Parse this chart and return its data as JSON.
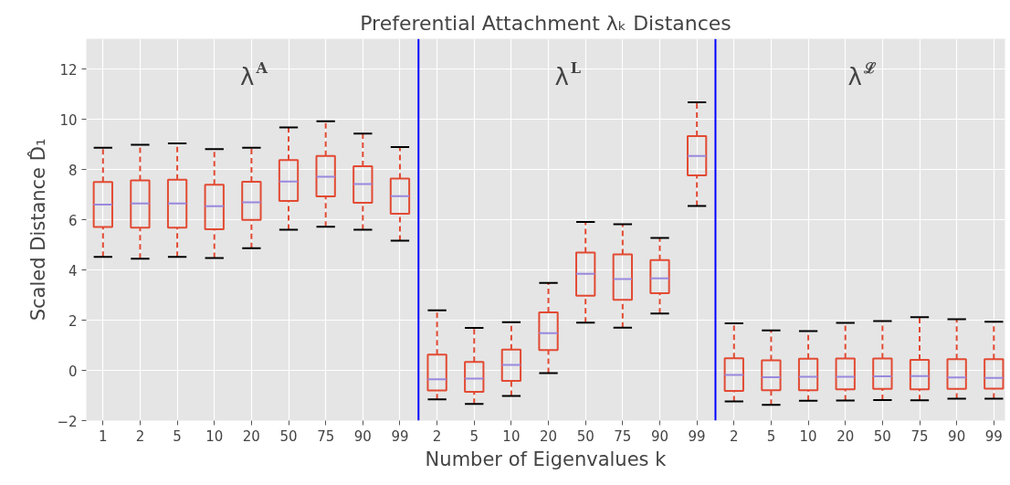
{
  "chart_data": {
    "type": "box",
    "title": "Preferential Attachment λₖ Distances",
    "xlabel": "Number of Eigenvalues k",
    "ylabel": "Scaled Distance D̂₁",
    "categories": [
      "1",
      "2",
      "5",
      "10",
      "20",
      "50",
      "75",
      "90",
      "99",
      "2",
      "5",
      "10",
      "20",
      "50",
      "75",
      "90",
      "99",
      "2",
      "5",
      "10",
      "20",
      "50",
      "75",
      "90",
      "99"
    ],
    "series": [
      {
        "color": "#e24a33",
        "boxes": [
          {
            "low": 4.52,
            "q1": 5.71,
            "median": 6.6,
            "q3": 7.5,
            "high": 8.86
          },
          {
            "low": 4.45,
            "q1": 5.68,
            "median": 6.65,
            "q3": 7.56,
            "high": 8.98
          },
          {
            "low": 4.52,
            "q1": 5.68,
            "median": 6.65,
            "q3": 7.59,
            "high": 9.04
          },
          {
            "low": 4.47,
            "q1": 5.62,
            "median": 6.54,
            "q3": 7.39,
            "high": 8.81
          },
          {
            "low": 4.86,
            "q1": 5.99,
            "median": 6.69,
            "q3": 7.51,
            "high": 8.86
          },
          {
            "low": 5.6,
            "q1": 6.75,
            "median": 7.52,
            "q3": 8.37,
            "high": 9.67
          },
          {
            "low": 5.72,
            "q1": 6.93,
            "median": 7.71,
            "q3": 8.54,
            "high": 9.92
          },
          {
            "low": 5.6,
            "q1": 6.67,
            "median": 7.42,
            "q3": 8.13,
            "high": 9.43
          },
          {
            "low": 5.16,
            "q1": 6.24,
            "median": 6.94,
            "q3": 7.64,
            "high": 8.89
          },
          {
            "low": -1.15,
            "q1": -0.8,
            "median": -0.35,
            "q3": 0.63,
            "high": 2.39
          },
          {
            "low": -1.34,
            "q1": -0.85,
            "median": -0.33,
            "q3": 0.34,
            "high": 1.69
          },
          {
            "low": -1.02,
            "q1": -0.42,
            "median": 0.22,
            "q3": 0.83,
            "high": 1.92
          },
          {
            "low": -0.11,
            "q1": 0.81,
            "median": 1.48,
            "q3": 2.31,
            "high": 3.48
          },
          {
            "low": 1.9,
            "q1": 2.97,
            "median": 3.85,
            "q3": 4.69,
            "high": 5.91
          },
          {
            "low": 1.7,
            "q1": 2.81,
            "median": 3.64,
            "q3": 4.62,
            "high": 5.82
          },
          {
            "low": 2.26,
            "q1": 3.07,
            "median": 3.66,
            "q3": 4.39,
            "high": 5.27
          },
          {
            "low": 6.55,
            "q1": 7.76,
            "median": 8.54,
            "q3": 9.33,
            "high": 10.67
          },
          {
            "low": -1.24,
            "q1": -0.82,
            "median": -0.18,
            "q3": 0.48,
            "high": 1.87
          },
          {
            "low": -1.37,
            "q1": -0.79,
            "median": -0.27,
            "q3": 0.4,
            "high": 1.59
          },
          {
            "low": -1.21,
            "q1": -0.79,
            "median": -0.25,
            "q3": 0.46,
            "high": 1.56
          },
          {
            "low": -1.2,
            "q1": -0.75,
            "median": -0.25,
            "q3": 0.47,
            "high": 1.89
          },
          {
            "low": -1.18,
            "q1": -0.74,
            "median": -0.24,
            "q3": 0.47,
            "high": 1.96
          },
          {
            "low": -1.19,
            "q1": -0.75,
            "median": -0.23,
            "q3": 0.42,
            "high": 2.12
          },
          {
            "low": -1.13,
            "q1": -0.74,
            "median": -0.28,
            "q3": 0.45,
            "high": 2.04
          },
          {
            "low": -1.13,
            "q1": -0.73,
            "median": -0.3,
            "q3": 0.45,
            "high": 1.94
          }
        ]
      }
    ],
    "ylim": [
      -2,
      13.2
    ],
    "yticks": [
      -2,
      0,
      2,
      4,
      6,
      8,
      10,
      12
    ],
    "grid": true,
    "line_style": "dashed",
    "annotations": [
      "λ$^{A}$",
      "λ$^{L}$",
      "λ$^{ℒ}$"
    ]
  }
}
